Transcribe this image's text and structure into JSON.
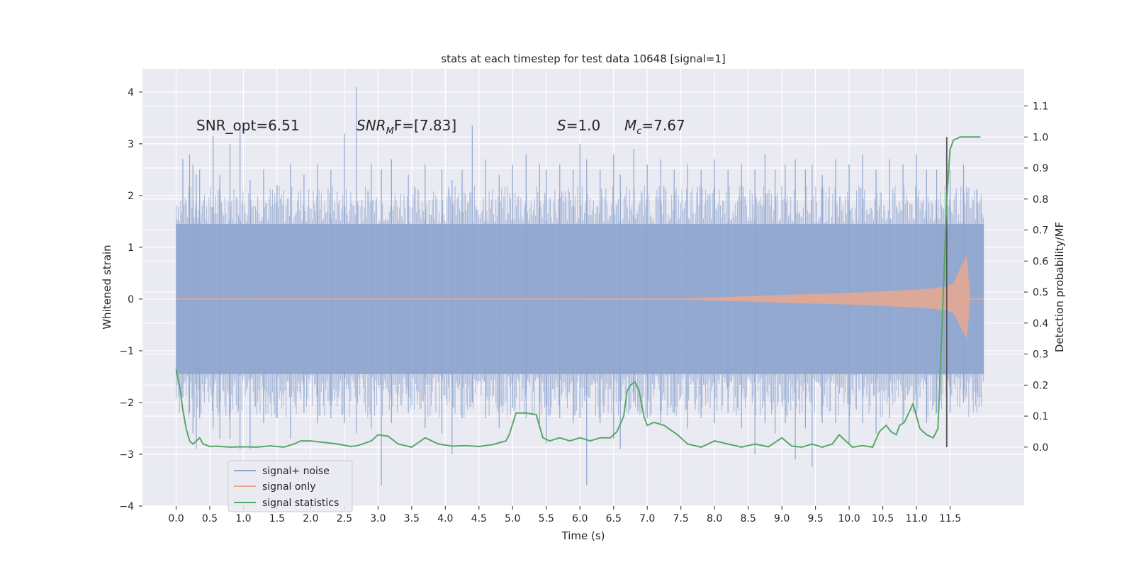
{
  "chart_data": {
    "type": "line",
    "title": "stats at each timestep for test data 10648 [signal=1]",
    "xlabel": "Time (s)",
    "ylabel_left": "Whitened strain",
    "ylabel_right": "Detection probability/MF",
    "xlim": [
      -0.5,
      12.6
    ],
    "ylim_left": [
      -4,
      4.45
    ],
    "ylim_right": [
      -0.19,
      1.22
    ],
    "x_ticks": [
      "0.0",
      "0.5",
      "1.0",
      "1.5",
      "2.0",
      "2.5",
      "3.0",
      "3.5",
      "4.0",
      "4.5",
      "5.0",
      "5.5",
      "6.0",
      "6.5",
      "7.0",
      "7.5",
      "8.0",
      "8.5",
      "9.0",
      "9.5",
      "10.0",
      "10.5",
      "11.0",
      "11.5"
    ],
    "y_ticks_left": [
      "4",
      "3",
      "2",
      "1",
      "0",
      "−1",
      "−2",
      "−3",
      "−4"
    ],
    "y_ticks_right": [
      "1.1",
      "1.0",
      "0.9",
      "0.8",
      "0.7",
      "0.6",
      "0.5",
      "0.4",
      "0.3",
      "0.2",
      "0.1",
      "0.0"
    ],
    "annotations": {
      "snr_opt": "SNR_opt=6.51",
      "snr_mf_name": "SNR",
      "snr_mf_sub": "M",
      "snr_mf_rest": "F=[7.83]",
      "s_name": "S",
      "s_rest": "=1.0",
      "mc_name": "M",
      "mc_sub": "c",
      "mc_rest": "=7.67"
    },
    "legend": {
      "position": "lower-left",
      "entries": [
        {
          "label": "signal+ noise",
          "color": "#8fa6cf"
        },
        {
          "label": "signal only",
          "color": "#e8a890"
        },
        {
          "label": "signal statistics",
          "color": "#55a868"
        }
      ]
    },
    "series": [
      {
        "name": "signal+ noise",
        "axis": "left",
        "color": "#8fa6cf",
        "t_start": 0.0,
        "t_end": 12.0,
        "envelope": [
          1.45,
          -1.45
        ],
        "spikes": [
          [
            0.1,
            2.7,
            -1.9
          ],
          [
            0.2,
            2.8,
            -2.2
          ],
          [
            0.25,
            2.6,
            -2.6
          ],
          [
            0.3,
            2.4,
            -2.9
          ],
          [
            0.35,
            2.5,
            -2.3
          ],
          [
            0.55,
            3.15,
            -2.5
          ],
          [
            0.65,
            2.4,
            -2.7
          ],
          [
            0.8,
            3.0,
            -2.7
          ],
          [
            0.95,
            3.3,
            -2.9
          ],
          [
            1.1,
            2.3,
            -2.9
          ],
          [
            1.3,
            2.5,
            -2.4
          ],
          [
            1.5,
            2.2,
            -2.3
          ],
          [
            1.7,
            2.6,
            -2.7
          ],
          [
            1.9,
            2.4,
            -2.2
          ],
          [
            2.1,
            2.6,
            -2.4
          ],
          [
            2.3,
            2.5,
            -2.3
          ],
          [
            2.5,
            3.2,
            -2.4
          ],
          [
            2.68,
            4.1,
            -2.6
          ],
          [
            2.9,
            2.6,
            -2.5
          ],
          [
            3.05,
            2.5,
            -3.6
          ],
          [
            3.2,
            2.7,
            -2.4
          ],
          [
            3.45,
            2.4,
            -2.2
          ],
          [
            3.7,
            2.6,
            -2.5
          ],
          [
            3.95,
            2.5,
            -2.6
          ],
          [
            4.1,
            2.3,
            -3.0
          ],
          [
            4.25,
            2.5,
            -2.3
          ],
          [
            4.4,
            3.35,
            -2.0
          ],
          [
            4.6,
            2.7,
            -2.3
          ],
          [
            4.8,
            2.4,
            -2.5
          ],
          [
            5.0,
            2.6,
            -2.1
          ],
          [
            5.2,
            2.8,
            -2.3
          ],
          [
            5.4,
            2.6,
            -2.5
          ],
          [
            5.5,
            2.5,
            -2.8
          ],
          [
            5.7,
            2.6,
            -2.3
          ],
          [
            5.9,
            2.5,
            -2.4
          ],
          [
            6.0,
            3.0,
            -2.3
          ],
          [
            6.1,
            2.7,
            -3.6
          ],
          [
            6.3,
            2.5,
            -2.4
          ],
          [
            6.5,
            2.8,
            -2.7
          ],
          [
            6.6,
            2.4,
            -2.9
          ],
          [
            6.8,
            2.9,
            -2.0
          ],
          [
            7.0,
            2.6,
            -2.3
          ],
          [
            7.2,
            2.7,
            -2.4
          ],
          [
            7.4,
            2.5,
            -2.2
          ],
          [
            7.6,
            2.6,
            -2.5
          ],
          [
            7.8,
            2.5,
            -2.3
          ],
          [
            8.0,
            2.7,
            -2.4
          ],
          [
            8.2,
            2.5,
            -2.2
          ],
          [
            8.4,
            2.6,
            -2.5
          ],
          [
            8.6,
            2.5,
            -3.0
          ],
          [
            8.75,
            2.8,
            -2.4
          ],
          [
            8.9,
            2.5,
            -2.6
          ],
          [
            9.05,
            2.6,
            -2.4
          ],
          [
            9.2,
            2.7,
            -3.1
          ],
          [
            9.35,
            2.5,
            -2.5
          ],
          [
            9.45,
            2.6,
            -3.25
          ],
          [
            9.6,
            2.4,
            -2.4
          ],
          [
            9.8,
            2.7,
            -2.4
          ],
          [
            10.0,
            2.6,
            -2.8
          ],
          [
            10.2,
            2.8,
            -2.4
          ],
          [
            10.4,
            2.5,
            -2.6
          ],
          [
            10.6,
            2.7,
            -2.3
          ],
          [
            10.8,
            2.6,
            -2.4
          ],
          [
            11.0,
            2.8,
            -2.3
          ],
          [
            11.15,
            2.5,
            -2.4
          ],
          [
            11.3,
            2.5,
            -2.2
          ],
          [
            11.5,
            2.5,
            -2.2
          ],
          [
            11.7,
            2.6,
            -2.0
          ],
          [
            11.9,
            2.1,
            -1.8
          ]
        ]
      },
      {
        "name": "signal only",
        "axis": "left",
        "color": "#e8a890",
        "t_start": 0.0,
        "t_end": 12.0,
        "amplitude_points": [
          [
            0.0,
            0.005
          ],
          [
            7.5,
            0.01
          ],
          [
            9.0,
            0.08
          ],
          [
            10.0,
            0.12
          ],
          [
            10.8,
            0.17
          ],
          [
            11.2,
            0.2
          ],
          [
            11.45,
            0.25
          ],
          [
            11.55,
            0.3
          ],
          [
            11.65,
            0.6
          ],
          [
            11.75,
            0.85
          ],
          [
            11.8,
            0.0
          ],
          [
            12.0,
            0.0
          ]
        ]
      },
      {
        "name": "signal statistics",
        "axis": "right",
        "color": "#55a868",
        "x": [
          0.0,
          0.05,
          0.1,
          0.15,
          0.2,
          0.25,
          0.3,
          0.35,
          0.4,
          0.5,
          0.6,
          0.8,
          1.0,
          1.2,
          1.4,
          1.6,
          1.75,
          1.85,
          2.0,
          2.2,
          2.4,
          2.6,
          2.7,
          2.9,
          3.0,
          3.15,
          3.3,
          3.5,
          3.7,
          3.9,
          4.1,
          4.3,
          4.5,
          4.7,
          4.9,
          4.95,
          5.05,
          5.2,
          5.35,
          5.45,
          5.55,
          5.7,
          5.85,
          6.0,
          6.15,
          6.3,
          6.45,
          6.55,
          6.65,
          6.7,
          6.75,
          6.82,
          6.88,
          6.95,
          7.0,
          7.1,
          7.25,
          7.45,
          7.6,
          7.8,
          8.0,
          8.2,
          8.4,
          8.6,
          8.8,
          9.0,
          9.15,
          9.3,
          9.45,
          9.6,
          9.75,
          9.85,
          9.95,
          10.05,
          10.2,
          10.35,
          10.45,
          10.55,
          10.62,
          10.7,
          10.75,
          10.82,
          10.95,
          11.05,
          11.15,
          11.25,
          11.32,
          11.4,
          11.45,
          11.5,
          11.55,
          11.6,
          11.65,
          11.8,
          11.95
        ],
        "y": [
          0.25,
          0.2,
          0.12,
          0.06,
          0.02,
          0.01,
          0.02,
          0.03,
          0.01,
          0.002,
          0.003,
          0.0,
          0.001,
          0.0,
          0.004,
          0.0,
          0.01,
          0.02,
          0.02,
          0.015,
          0.01,
          0.002,
          0.005,
          0.02,
          0.04,
          0.035,
          0.01,
          0.0,
          0.03,
          0.01,
          0.003,
          0.005,
          0.002,
          0.008,
          0.02,
          0.04,
          0.11,
          0.11,
          0.105,
          0.03,
          0.02,
          0.03,
          0.02,
          0.03,
          0.02,
          0.03,
          0.03,
          0.05,
          0.1,
          0.18,
          0.2,
          0.21,
          0.18,
          0.1,
          0.07,
          0.08,
          0.07,
          0.04,
          0.01,
          0.0,
          0.02,
          0.01,
          0.0,
          0.01,
          0.001,
          0.03,
          0.003,
          0.0,
          0.01,
          0.0,
          0.01,
          0.04,
          0.02,
          0.0,
          0.005,
          0.0,
          0.05,
          0.07,
          0.05,
          0.04,
          0.07,
          0.08,
          0.14,
          0.06,
          0.04,
          0.03,
          0.06,
          0.5,
          0.8,
          0.96,
          0.99,
          0.995,
          1.0,
          1.0,
          1.0
        ]
      },
      {
        "name": "event marker",
        "axis": "right",
        "color": "#555555",
        "x": 11.45,
        "y_range": [
          0.0,
          1.0
        ]
      }
    ]
  }
}
